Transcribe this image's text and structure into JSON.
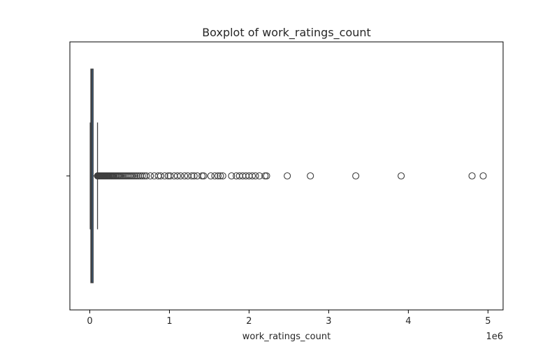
{
  "chart_data": {
    "type": "box",
    "title": "Boxplot of work_ratings_count",
    "xlabel": "work_ratings_count",
    "ylabel": "",
    "x_offset_label": "1e6",
    "orientation": "horizontal",
    "xlim": [
      -250000,
      5190000
    ],
    "x_ticks": [
      0,
      1000000,
      2000000,
      3000000,
      4000000,
      5000000
    ],
    "x_tick_labels": [
      "0",
      "1",
      "2",
      "3",
      "4",
      "5"
    ],
    "grid": false,
    "box": {
      "min": 5500,
      "q1": 13500,
      "median": 23800,
      "q3": 41900,
      "whisker_high": 97000,
      "color": "#3a6b98",
      "line_color": "#3f3f3f"
    },
    "outliers": [
      98000,
      100000,
      103000,
      106000,
      109000,
      112000,
      116000,
      120000,
      124000,
      128000,
      133000,
      138000,
      143000,
      149000,
      155000,
      161000,
      168000,
      175000,
      182000,
      190000,
      198000,
      207000,
      216000,
      226000,
      236000,
      247000,
      258000,
      270000,
      282000,
      295000,
      308000,
      322000,
      336000,
      351000,
      366000,
      382000,
      398000,
      415000,
      432000,
      450000,
      468000,
      487000,
      506000,
      526000,
      546000,
      567000,
      589000,
      612000,
      636000,
      660000,
      685000,
      710000,
      760000,
      810000,
      860000,
      890000,
      940000,
      985000,
      1010000,
      1060000,
      1100000,
      1140000,
      1190000,
      1230000,
      1280000,
      1310000,
      1350000,
      1410000,
      1430000,
      1520000,
      1570000,
      1610000,
      1640000,
      1670000,
      1780000,
      1840000,
      1880000,
      1920000,
      1960000,
      2000000,
      2040000,
      2080000,
      2130000,
      2200000,
      2220000,
      2480000,
      2770000,
      3340000,
      3910000,
      4800000,
      4940000
    ]
  }
}
